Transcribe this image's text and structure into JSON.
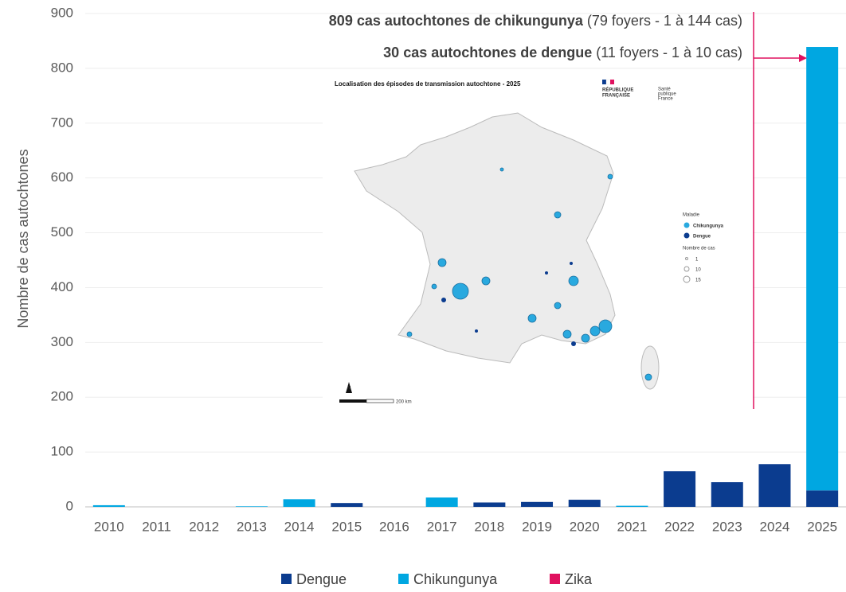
{
  "chart_data": {
    "type": "bar",
    "stacked": true,
    "y_axis_label": "Nombre de cas autochtones",
    "categories": [
      "2010",
      "2011",
      "2012",
      "2013",
      "2014",
      "2015",
      "2016",
      "2017",
      "2018",
      "2019",
      "2020",
      "2021",
      "2022",
      "2023",
      "2024",
      "2025"
    ],
    "series": [
      {
        "name": "Dengue",
        "color": "#0b3c8f",
        "values": [
          0,
          0,
          0,
          0,
          0,
          7,
          0,
          0,
          8,
          9,
          13,
          0,
          65,
          45,
          78,
          30
        ]
      },
      {
        "name": "Chikungunya",
        "color": "#00a7e1",
        "values": [
          3,
          0,
          0,
          1,
          14,
          0,
          0,
          17,
          0,
          0,
          0,
          2,
          0,
          0,
          0,
          809
        ]
      },
      {
        "name": "Zika",
        "color": "#e0115f",
        "values": [
          0,
          0,
          0,
          0,
          0,
          0,
          0,
          0,
          0,
          0,
          0,
          0,
          0,
          0,
          0,
          0
        ]
      }
    ],
    "ylim": [
      0,
      900
    ],
    "yticks": [
      0,
      100,
      200,
      300,
      400,
      500,
      600,
      700,
      800,
      900
    ],
    "grid": true,
    "legend": "bottom",
    "annotations": [
      {
        "bold": "809 cas autochtones de chikungunya",
        "text": " (79 foyers - 1 à 144 cas)"
      },
      {
        "bold": "30 cas autochtones de dengue",
        "text": " (11 foyers - 1 à 10 cas)"
      }
    ]
  },
  "map": {
    "title": "Localisation des épisodes de transmission autochtone - 2025",
    "logo_republique": [
      "RÉPUBLIQUE",
      "FRANÇAISE"
    ],
    "logo_spf": [
      "Santé",
      "publique",
      "France"
    ],
    "legend_title": "Maladie",
    "legend_items": [
      "Chikungunya",
      "Dengue"
    ],
    "size_title": "Nombre de cas",
    "size_items": [
      "1",
      "10",
      "15"
    ],
    "north": "N",
    "scale": "200 km"
  }
}
